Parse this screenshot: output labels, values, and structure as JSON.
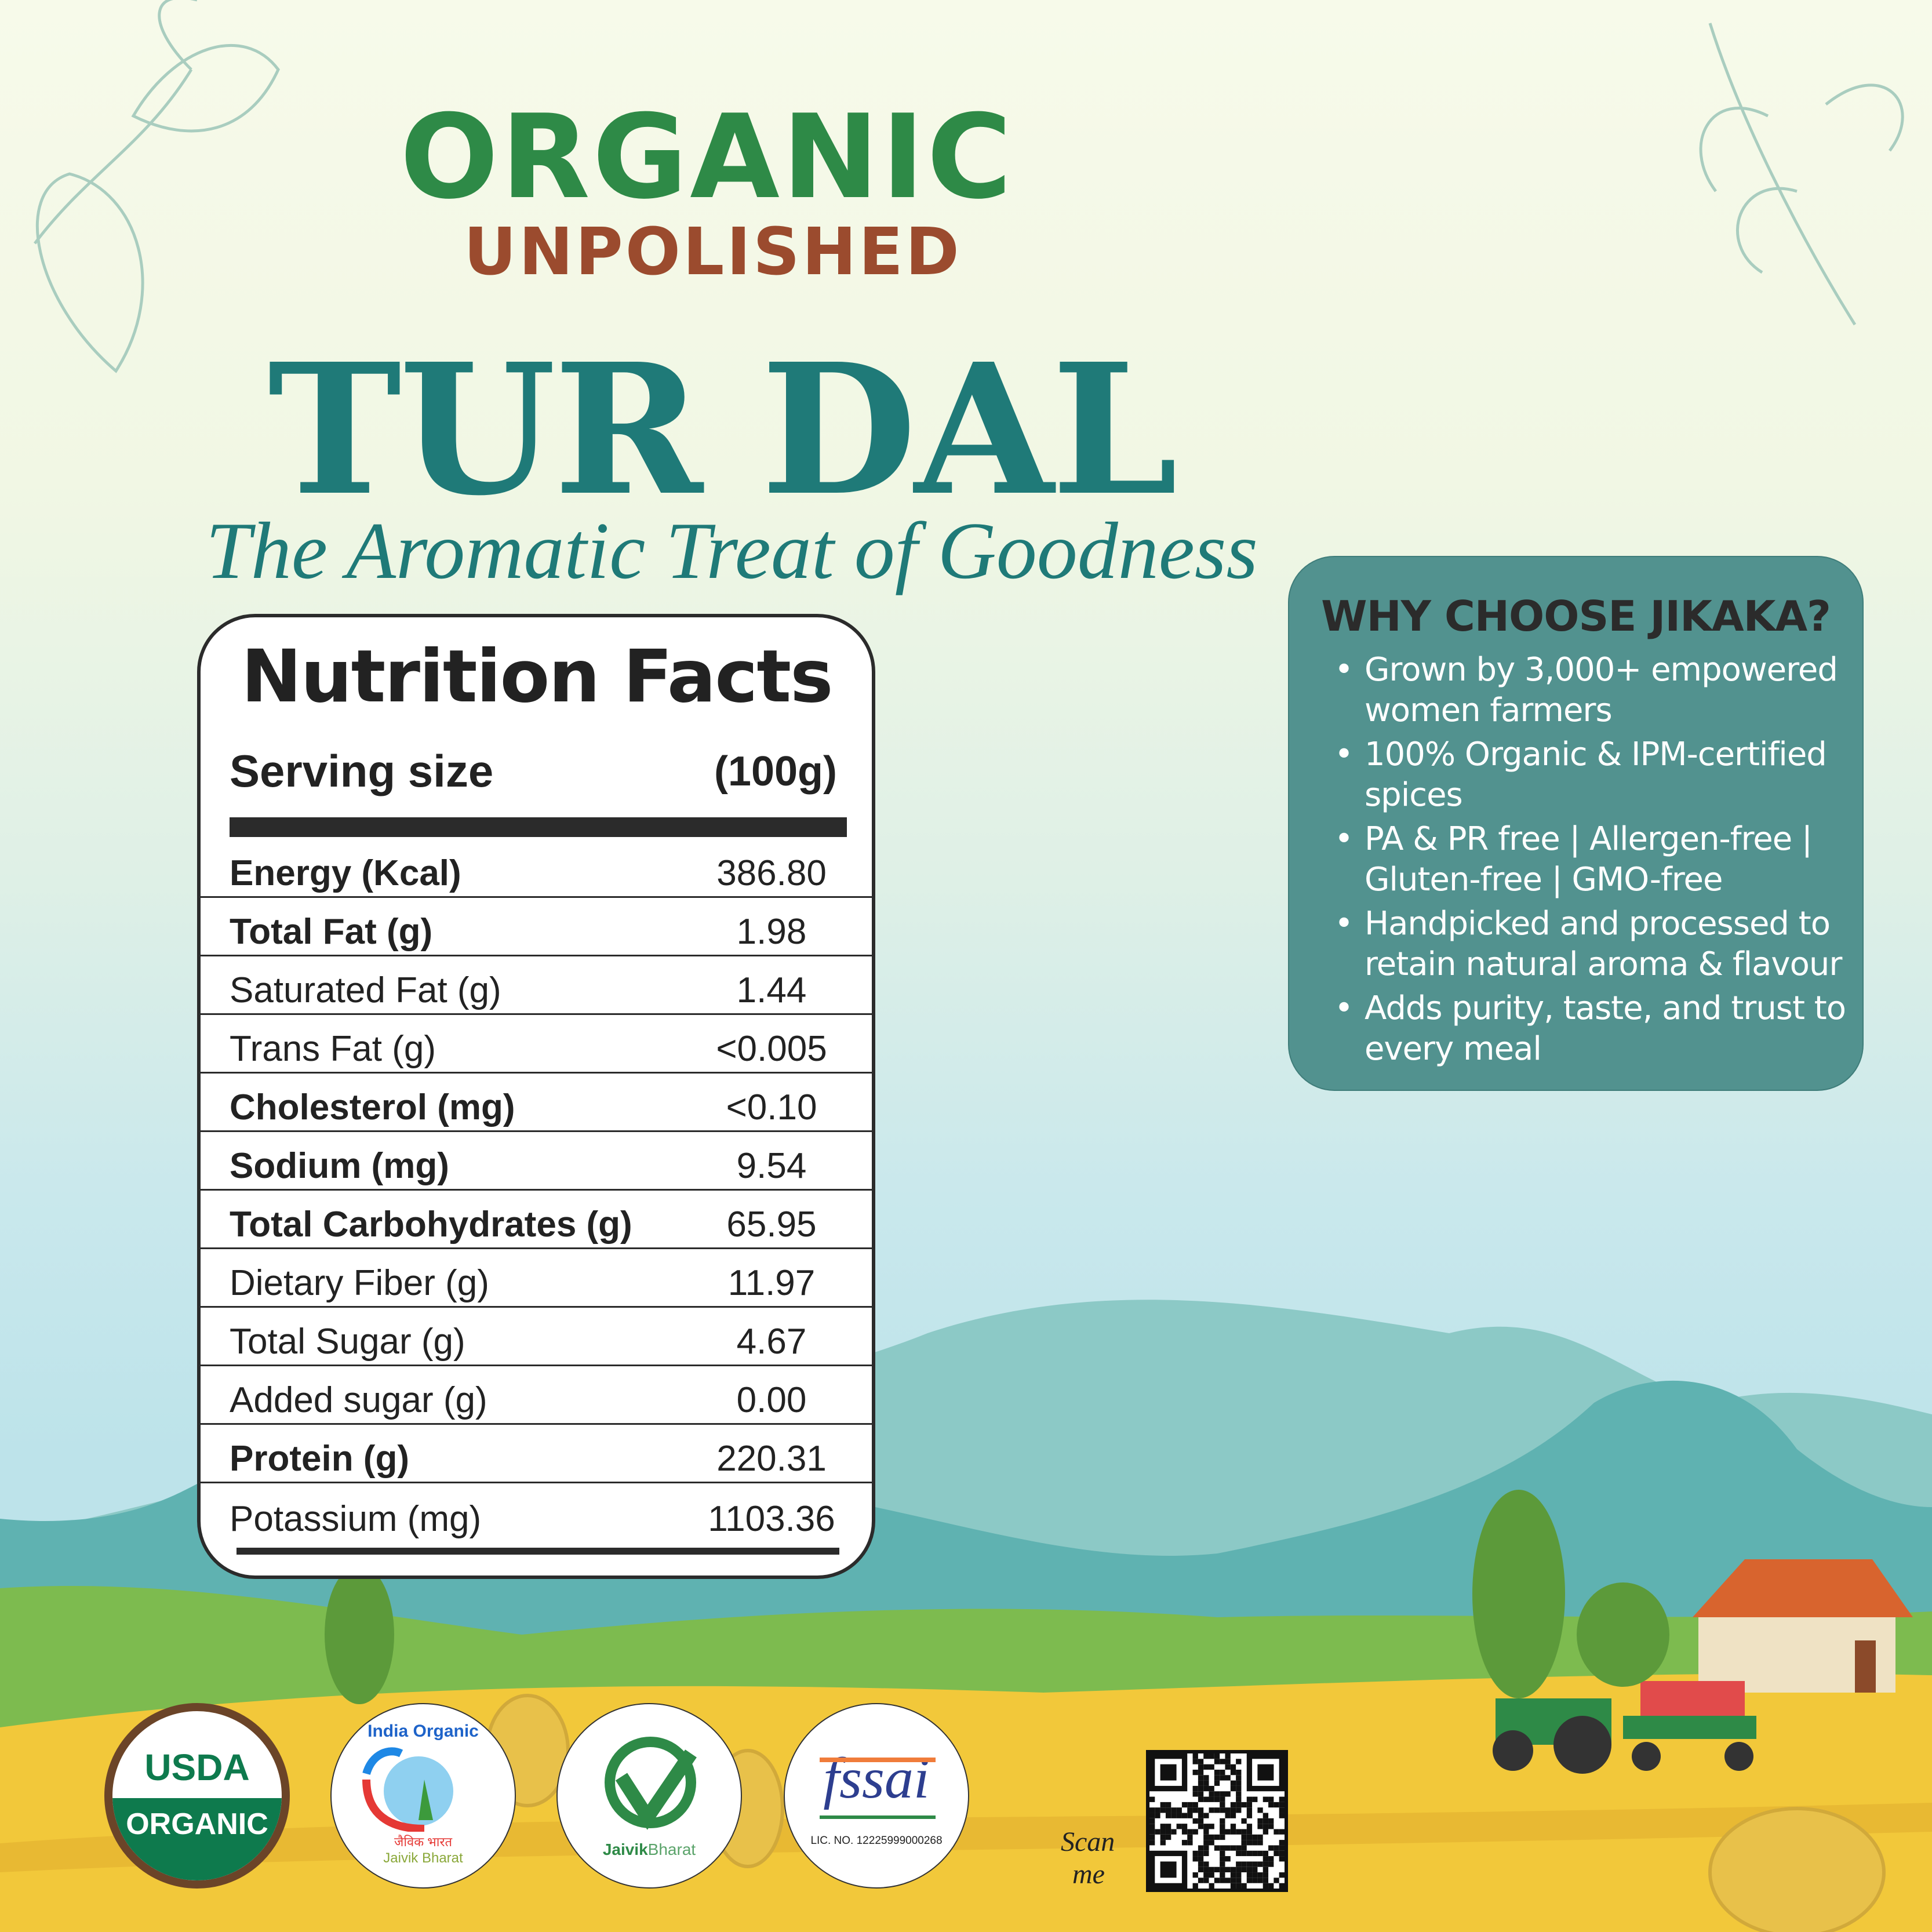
{
  "header": {
    "organic": "ORGANIC",
    "unpolished": "UNPOLISHED",
    "product": "TUR DAL",
    "tagline": "The Aromatic Treat of Goodness"
  },
  "nutrition": {
    "title": "Nutrition Facts",
    "serving_label": "Serving size",
    "serving_value": "(100g)",
    "rows": [
      {
        "label": "Energy (Kcal)",
        "value": "386.80",
        "bold": true
      },
      {
        "label": "Total Fat (g)",
        "value": "1.98",
        "bold": true
      },
      {
        "label": "Saturated Fat (g)",
        "value": "1.44",
        "bold": false
      },
      {
        "label": "Trans Fat (g)",
        "value": "<0.005",
        "bold": false
      },
      {
        "label": "Cholesterol (mg)",
        "value": "<0.10",
        "bold": true
      },
      {
        "label": "Sodium (mg)",
        "value": "9.54",
        "bold": true
      },
      {
        "label": "Total Carbohydrates (g)",
        "value": "65.95",
        "bold": true
      },
      {
        "label": "Dietary Fiber (g)",
        "value": "11.97",
        "bold": false
      },
      {
        "label": "Total Sugar (g)",
        "value": "4.67",
        "bold": false
      },
      {
        "label": "Added sugar (g)",
        "value": "0.00",
        "bold": false
      },
      {
        "label": "Protein (g)",
        "value": "220.31",
        "bold": true
      },
      {
        "label": "Potassium (mg)",
        "value": "1103.36",
        "bold": false
      }
    ]
  },
  "why": {
    "title": "WHY CHOOSE JIKAKA?",
    "items": [
      "Grown by 3,000+ empowered women farmers",
      "100% Organic & IPM-certified spices",
      "PA & PR free | Allergen-free | Gluten-free | GMO-free",
      "Handpicked and processed to retain natural aroma & flavour",
      "Adds purity, taste, and trust to every meal"
    ]
  },
  "certifications": {
    "usda_top": "USDA",
    "usda_bottom": "ORGANIC",
    "india_organic": "India Organic",
    "india_hindi": "जैविक भारत",
    "india_jaivik": "Jaivik Bharat",
    "jaivik_a": "Jaivik",
    "jaivik_b": "Bharat",
    "fssai": "fssai",
    "fssai_license": "LIC. NO. 12225999000268"
  },
  "qr": {
    "label_1": "Scan",
    "label_2": "me"
  },
  "colors": {
    "brand_green": "#2e8a47",
    "brown": "#9b4b2e",
    "teal": "#1f7a78",
    "panel": "#52928f",
    "field": "#f2c83a"
  }
}
